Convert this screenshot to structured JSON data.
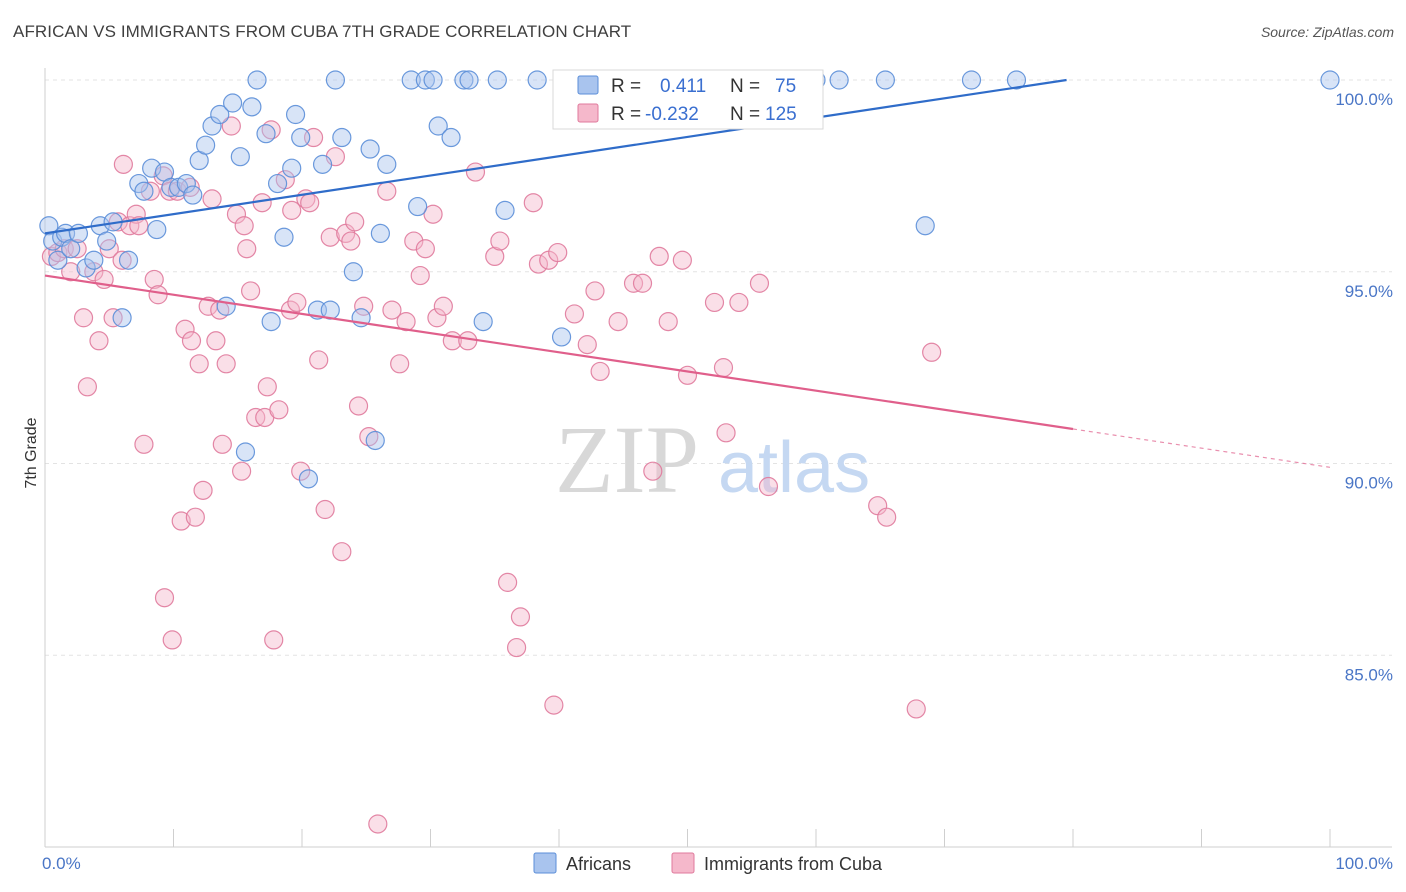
{
  "title": "AFRICAN VS IMMIGRANTS FROM CUBA 7TH GRADE CORRELATION CHART",
  "source": "Source: ZipAtlas.com",
  "watermark": {
    "zip": "ZIP",
    "atlas": "atlas"
  },
  "chart_data": {
    "type": "scatter",
    "ylabel": "7th Grade",
    "xlim": [
      0,
      100
    ],
    "ylim": [
      80,
      100.5
    ],
    "y_ticks": [
      100,
      95,
      90,
      85
    ],
    "y_tick_labels": [
      "100.0%",
      "95.0%",
      "90.0%",
      "85.0%"
    ],
    "x_tick_labels": [
      "0.0%",
      "100.0%"
    ],
    "grid": true,
    "colors": {
      "africans_fill": "#a9c4ee",
      "africans_stroke": "#5b8ed8",
      "africans_line": "#2f6cc9",
      "cuba_fill": "#f5b8cb",
      "cuba_stroke": "#e07a9c",
      "cuba_line": "#e05f8b"
    },
    "legend": {
      "r_label": "R =",
      "n_label": "N =",
      "series": [
        {
          "name": "Africans",
          "r": "0.411",
          "n": "75"
        },
        {
          "name": "Immigrants from Cuba",
          "r": "-0.232",
          "n": "125"
        }
      ]
    },
    "series": [
      {
        "name": "Africans",
        "trend": {
          "x0": 0,
          "y0": 96.0,
          "x1": 79.5,
          "y1": 100.0,
          "dash_to": null
        },
        "points": [
          [
            0.3,
            96.2
          ],
          [
            0.6,
            95.8
          ],
          [
            1.0,
            95.3
          ],
          [
            1.3,
            95.9
          ],
          [
            1.6,
            96.0
          ],
          [
            2.0,
            95.6
          ],
          [
            2.6,
            96.0
          ],
          [
            3.2,
            95.1
          ],
          [
            3.8,
            95.3
          ],
          [
            4.3,
            96.2
          ],
          [
            4.8,
            95.8
          ],
          [
            5.3,
            96.3
          ],
          [
            6.0,
            93.8
          ],
          [
            6.5,
            95.3
          ],
          [
            7.3,
            97.3
          ],
          [
            7.7,
            97.1
          ],
          [
            8.3,
            97.7
          ],
          [
            8.7,
            96.1
          ],
          [
            9.3,
            97.6
          ],
          [
            9.8,
            97.2
          ],
          [
            10.4,
            97.2
          ],
          [
            11.0,
            97.3
          ],
          [
            11.5,
            97.0
          ],
          [
            12.0,
            97.9
          ],
          [
            12.5,
            98.3
          ],
          [
            13.0,
            98.8
          ],
          [
            13.6,
            99.1
          ],
          [
            14.1,
            94.1
          ],
          [
            14.6,
            99.4
          ],
          [
            15.2,
            98.0
          ],
          [
            15.6,
            90.3
          ],
          [
            16.1,
            99.3
          ],
          [
            16.5,
            100.0
          ],
          [
            17.2,
            98.6
          ],
          [
            17.6,
            93.7
          ],
          [
            18.1,
            97.3
          ],
          [
            18.6,
            95.9
          ],
          [
            19.2,
            97.7
          ],
          [
            19.5,
            99.1
          ],
          [
            19.9,
            98.5
          ],
          [
            20.5,
            89.6
          ],
          [
            21.2,
            94.0
          ],
          [
            21.6,
            97.8
          ],
          [
            22.2,
            94.0
          ],
          [
            22.6,
            100.0
          ],
          [
            23.1,
            98.5
          ],
          [
            24.0,
            95.0
          ],
          [
            24.6,
            93.8
          ],
          [
            25.3,
            98.2
          ],
          [
            25.7,
            90.6
          ],
          [
            26.1,
            96.0
          ],
          [
            26.6,
            97.8
          ],
          [
            28.5,
            100.0
          ],
          [
            29.0,
            96.7
          ],
          [
            29.6,
            100.0
          ],
          [
            30.2,
            100.0
          ],
          [
            30.6,
            98.8
          ],
          [
            31.6,
            98.5
          ],
          [
            32.6,
            100.0
          ],
          [
            33.0,
            100.0
          ],
          [
            34.1,
            93.7
          ],
          [
            35.2,
            100.0
          ],
          [
            35.8,
            96.6
          ],
          [
            38.3,
            100.0
          ],
          [
            40.2,
            93.3
          ],
          [
            42.0,
            100.0
          ],
          [
            46.6,
            100.0
          ],
          [
            52.6,
            100.0
          ],
          [
            58.0,
            100.0
          ],
          [
            60.0,
            100.0
          ],
          [
            61.8,
            100.0
          ],
          [
            65.4,
            100.0
          ],
          [
            68.5,
            96.2
          ],
          [
            72.1,
            100.0
          ],
          [
            75.6,
            100.0
          ],
          [
            100.0,
            100.0
          ]
        ]
      },
      {
        "name": "Immigrants from Cuba",
        "trend": {
          "x0": 0,
          "y0": 94.9,
          "x1": 80.0,
          "y1": 90.9,
          "dash_to": [
            100,
            89.9
          ]
        },
        "points": [
          [
            0.5,
            95.4
          ],
          [
            1.0,
            95.5
          ],
          [
            1.5,
            95.6
          ],
          [
            2.0,
            95.0
          ],
          [
            2.5,
            95.6
          ],
          [
            3.0,
            93.8
          ],
          [
            3.3,
            92.0
          ],
          [
            3.8,
            95.0
          ],
          [
            4.2,
            93.2
          ],
          [
            4.6,
            94.8
          ],
          [
            5.0,
            95.6
          ],
          [
            5.3,
            93.8
          ],
          [
            5.7,
            96.3
          ],
          [
            6.0,
            95.3
          ],
          [
            6.1,
            97.8
          ],
          [
            6.6,
            96.2
          ],
          [
            7.1,
            96.5
          ],
          [
            7.3,
            96.2
          ],
          [
            7.7,
            90.5
          ],
          [
            8.2,
            97.1
          ],
          [
            8.5,
            94.8
          ],
          [
            8.8,
            94.4
          ],
          [
            9.2,
            97.5
          ],
          [
            9.3,
            86.5
          ],
          [
            9.7,
            97.1
          ],
          [
            9.9,
            85.4
          ],
          [
            10.3,
            97.1
          ],
          [
            10.6,
            88.5
          ],
          [
            10.9,
            93.5
          ],
          [
            11.3,
            97.2
          ],
          [
            11.4,
            93.2
          ],
          [
            11.7,
            88.6
          ],
          [
            12.0,
            92.6
          ],
          [
            12.3,
            89.3
          ],
          [
            12.7,
            94.1
          ],
          [
            13.0,
            96.9
          ],
          [
            13.3,
            93.2
          ],
          [
            13.6,
            94.0
          ],
          [
            13.8,
            90.5
          ],
          [
            14.1,
            92.6
          ],
          [
            14.5,
            98.8
          ],
          [
            14.9,
            96.5
          ],
          [
            15.3,
            89.8
          ],
          [
            15.5,
            96.2
          ],
          [
            15.7,
            95.6
          ],
          [
            16.0,
            94.5
          ],
          [
            16.4,
            91.2
          ],
          [
            16.9,
            96.8
          ],
          [
            17.1,
            91.2
          ],
          [
            17.3,
            92.0
          ],
          [
            17.6,
            98.7
          ],
          [
            17.8,
            85.4
          ],
          [
            18.2,
            91.4
          ],
          [
            18.7,
            97.4
          ],
          [
            19.1,
            94.0
          ],
          [
            19.2,
            96.6
          ],
          [
            19.6,
            94.2
          ],
          [
            19.9,
            89.8
          ],
          [
            20.3,
            96.9
          ],
          [
            20.6,
            96.8
          ],
          [
            20.9,
            98.5
          ],
          [
            21.3,
            92.7
          ],
          [
            21.8,
            88.8
          ],
          [
            22.2,
            95.9
          ],
          [
            22.6,
            98.0
          ],
          [
            23.1,
            87.7
          ],
          [
            23.4,
            96.0
          ],
          [
            23.8,
            95.8
          ],
          [
            24.1,
            96.3
          ],
          [
            24.4,
            91.5
          ],
          [
            24.8,
            94.1
          ],
          [
            25.2,
            90.7
          ],
          [
            25.9,
            80.6
          ],
          [
            26.6,
            97.1
          ],
          [
            27.0,
            94.0
          ],
          [
            27.6,
            92.6
          ],
          [
            28.1,
            93.7
          ],
          [
            28.7,
            95.8
          ],
          [
            29.2,
            94.9
          ],
          [
            29.6,
            95.6
          ],
          [
            30.2,
            96.5
          ],
          [
            30.5,
            93.8
          ],
          [
            31.0,
            94.1
          ],
          [
            31.7,
            93.2
          ],
          [
            32.9,
            93.2
          ],
          [
            33.5,
            97.6
          ],
          [
            35.0,
            95.4
          ],
          [
            35.4,
            95.8
          ],
          [
            36.0,
            86.9
          ],
          [
            36.7,
            85.2
          ],
          [
            37.0,
            86.0
          ],
          [
            38.0,
            96.8
          ],
          [
            38.4,
            95.2
          ],
          [
            39.2,
            95.3
          ],
          [
            39.6,
            83.7
          ],
          [
            39.9,
            95.5
          ],
          [
            41.2,
            93.9
          ],
          [
            42.2,
            93.1
          ],
          [
            42.8,
            94.5
          ],
          [
            43.2,
            92.4
          ],
          [
            44.6,
            93.7
          ],
          [
            45.8,
            94.7
          ],
          [
            46.5,
            94.7
          ],
          [
            47.3,
            89.8
          ],
          [
            47.8,
            95.4
          ],
          [
            48.5,
            93.7
          ],
          [
            49.6,
            95.3
          ],
          [
            50.0,
            92.3
          ],
          [
            52.1,
            94.2
          ],
          [
            52.8,
            92.5
          ],
          [
            53.0,
            90.8
          ],
          [
            54.0,
            94.2
          ],
          [
            55.6,
            94.7
          ],
          [
            56.3,
            89.4
          ],
          [
            64.8,
            88.9
          ],
          [
            65.5,
            88.6
          ],
          [
            67.8,
            83.6
          ],
          [
            69.0,
            92.9
          ]
        ]
      }
    ]
  }
}
